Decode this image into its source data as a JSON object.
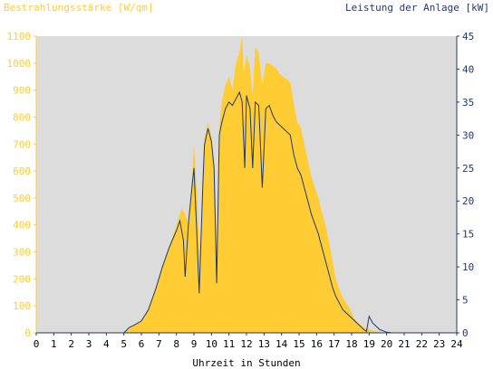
{
  "colors": {
    "background": "#ffffff",
    "plot_area": "#dcdcdc",
    "irradiance": "#ffcc33",
    "power": "#1f3a6e",
    "left_axis_text": "#ffcc33",
    "right_axis_text": "#1f3a6e",
    "x_axis_text": "#000000"
  },
  "chart_data": {
    "type": "area",
    "title_left": "Bestrahlungsstärke [W/qm]",
    "title_right": "Leistung der Anlage [kW]",
    "xlabel": "Uhrzeit in Stunden",
    "xlim": [
      0,
      24
    ],
    "ylim_left": [
      0,
      1100
    ],
    "ylim_right": [
      0,
      45
    ],
    "x_ticks": [
      "0",
      "1",
      "2",
      "3",
      "4",
      "5",
      "6",
      "7",
      "8",
      "9",
      "10",
      "11",
      "12",
      "13",
      "14",
      "15",
      "16",
      "17",
      "18",
      "19",
      "20",
      "21",
      "22",
      "23",
      "24"
    ],
    "y_left_ticks": [
      "0",
      "100",
      "200",
      "300",
      "400",
      "500",
      "600",
      "700",
      "800",
      "900",
      "1000",
      "1100"
    ],
    "y_right_ticks": [
      "0",
      "5",
      "10",
      "15",
      "20",
      "25",
      "30",
      "35",
      "40",
      "45"
    ],
    "grid": false,
    "series": [
      {
        "name": "Bestrahlungsstärke [W/qm]",
        "axis": "left",
        "type": "area",
        "x": [
          0,
          5.0,
          5.3,
          5.6,
          6.0,
          6.4,
          6.8,
          7.2,
          7.6,
          7.9,
          8.1,
          8.3,
          8.5,
          8.7,
          8.9,
          9.0,
          9.2,
          9.35,
          9.5,
          9.6,
          9.8,
          10.0,
          10.2,
          10.3,
          10.45,
          10.6,
          10.8,
          11.0,
          11.2,
          11.4,
          11.6,
          11.75,
          11.85,
          12.0,
          12.2,
          12.35,
          12.5,
          12.7,
          12.9,
          13.1,
          13.3,
          13.5,
          13.7,
          13.9,
          14.1,
          14.3,
          14.5,
          14.7,
          14.9,
          15.1,
          15.3,
          15.5,
          15.7,
          15.9,
          16.1,
          16.3,
          16.5,
          16.7,
          16.9,
          17.1,
          17.3,
          17.5,
          17.7,
          17.9,
          18.1,
          18.3,
          18.5,
          18.7,
          18.9,
          19.1,
          19.3,
          19.5,
          19.7,
          20.0,
          20.2,
          24
        ],
        "y": [
          0,
          0,
          15,
          30,
          45,
          90,
          160,
          250,
          320,
          380,
          420,
          460,
          440,
          400,
          580,
          700,
          480,
          250,
          560,
          720,
          780,
          730,
          600,
          300,
          760,
          860,
          920,
          950,
          900,
          1000,
          1040,
          1100,
          960,
          1030,
          980,
          880,
          1060,
          1040,
          920,
          1000,
          1000,
          990,
          980,
          960,
          950,
          940,
          930,
          850,
          780,
          760,
          700,
          640,
          580,
          540,
          500,
          450,
          400,
          340,
          270,
          200,
          160,
          130,
          110,
          90,
          60,
          40,
          30,
          20,
          15,
          10,
          5,
          5,
          0,
          0,
          0,
          0
        ]
      },
      {
        "name": "Leistung der Anlage [kW]",
        "axis": "right",
        "type": "line",
        "x": [
          0,
          5.0,
          5.3,
          5.6,
          6.0,
          6.4,
          6.8,
          7.2,
          7.6,
          8.0,
          8.2,
          8.4,
          8.5,
          8.7,
          8.9,
          9.0,
          9.15,
          9.3,
          9.5,
          9.6,
          9.8,
          10.0,
          10.15,
          10.3,
          10.45,
          10.6,
          10.8,
          11.0,
          11.2,
          11.4,
          11.6,
          11.75,
          11.9,
          12.0,
          12.2,
          12.35,
          12.5,
          12.7,
          12.9,
          13.1,
          13.3,
          13.5,
          13.7,
          13.9,
          14.1,
          14.3,
          14.5,
          14.7,
          14.9,
          15.1,
          15.3,
          15.5,
          15.7,
          15.9,
          16.1,
          16.3,
          16.5,
          16.7,
          16.9,
          17.1,
          17.3,
          17.5,
          17.7,
          17.9,
          18.1,
          18.3,
          18.5,
          18.7,
          18.85,
          19.0,
          19.2,
          19.4,
          19.6,
          19.8,
          20.0,
          20.3,
          24
        ],
        "y": [
          0,
          0,
          0.8,
          1.2,
          1.8,
          3.5,
          6.5,
          10,
          13,
          15.5,
          17,
          14,
          8.5,
          17,
          22.5,
          25,
          16,
          6,
          22,
          28.5,
          31,
          29,
          25,
          7.5,
          30,
          32,
          34,
          35,
          34.5,
          35.5,
          36.5,
          35,
          25,
          36,
          34,
          25,
          35,
          34.5,
          22,
          34,
          34.5,
          33,
          32,
          31.5,
          31,
          30.5,
          30,
          27,
          25,
          24,
          22,
          20,
          18,
          16.5,
          15,
          13,
          11,
          9,
          7,
          5.5,
          4.5,
          3.5,
          3,
          2.5,
          2,
          1.5,
          1,
          0.5,
          0.2,
          2.5,
          1.5,
          1,
          0.5,
          0.3,
          0.1,
          0,
          0
        ]
      }
    ]
  }
}
